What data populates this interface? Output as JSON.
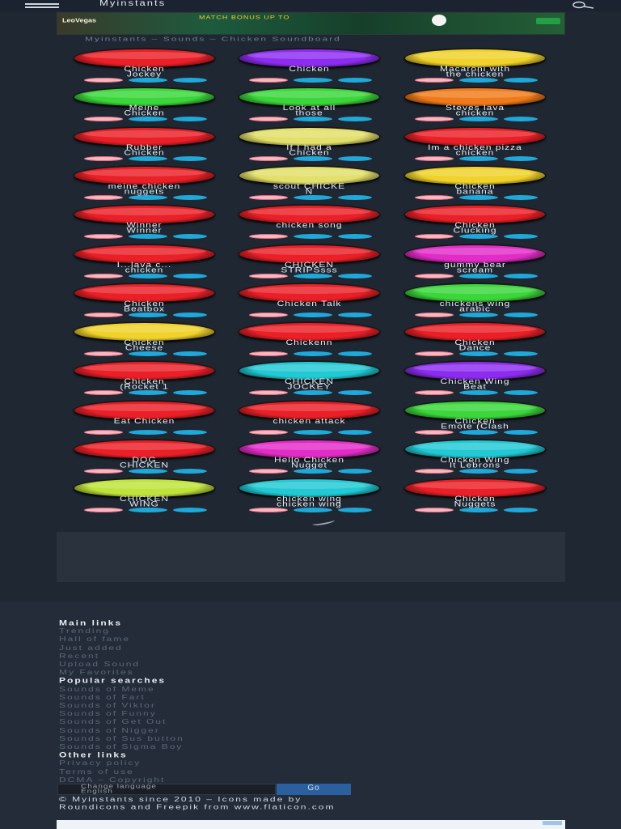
{
  "header": {
    "brand": "Myinstants",
    "menu_icon": "hamburger-icon",
    "search_icon": "search-icon"
  },
  "ad": {
    "logo": "LeoVegas",
    "text": "MATCH BONUS UP TO",
    "cta": ""
  },
  "breadcrumb": "Myinstants – Sounds – Chicken Soundboard",
  "colors": {
    "red": "#ea1f27",
    "purple": "#8d2cf0",
    "yellow": "#f0d22a",
    "green": "#3ad63a",
    "orange": "#f07a1a",
    "lightyellow": "#e2df6a",
    "cyan": "#21c9d4",
    "magenta": "#e22cc8",
    "lime": "#bfe33a",
    "favorite": "#ea6074",
    "share": "#1ea9da"
  },
  "sounds": [
    {
      "label": "Chicken\nJockey",
      "color": "red"
    },
    {
      "label": "Chicken",
      "color": "purple"
    },
    {
      "label": "Macaroni with\nthe chicken",
      "color": "yellow"
    },
    {
      "label": "Meine\nChicken",
      "color": "green"
    },
    {
      "label": "Look at all\nthose",
      "color": "green"
    },
    {
      "label": "Steves lava\nchicken",
      "color": "orange"
    },
    {
      "label": "Rubber\nChicken",
      "color": "red"
    },
    {
      "label": "If I had a\nChicken",
      "color": "lightyellow"
    },
    {
      "label": "Im a chicken pizza\nchicken",
      "color": "red"
    },
    {
      "label": "meine chicken\nnuggets",
      "color": "red"
    },
    {
      "label": "scout CHICKE\nN",
      "color": "lightyellow"
    },
    {
      "label": "Chicken\nbanana",
      "color": "yellow"
    },
    {
      "label": "Winner\nWinner",
      "color": "red"
    },
    {
      "label": "chicken song",
      "color": "red"
    },
    {
      "label": "Chicken\nClucking",
      "color": "red"
    },
    {
      "label": "I...lava c...\nchicken",
      "color": "red"
    },
    {
      "label": "CHICKEN\nSTRIPSsss",
      "color": "red"
    },
    {
      "label": "gummy bear\nscream",
      "color": "magenta"
    },
    {
      "label": "Chicken\nBeatbox",
      "color": "red"
    },
    {
      "label": "Chicken Talk",
      "color": "red"
    },
    {
      "label": "chickens wing\narabic",
      "color": "green"
    },
    {
      "label": "Chicken\nCheese",
      "color": "yellow"
    },
    {
      "label": "Chickenn",
      "color": "red"
    },
    {
      "label": "Chicken\nDance",
      "color": "red"
    },
    {
      "label": "Chicken\n(Rocket 1",
      "color": "red"
    },
    {
      "label": "CHICKEN\nJOCKEY",
      "color": "cyan"
    },
    {
      "label": "Chicken Wing\nBeat",
      "color": "purple"
    },
    {
      "label": "Eat Chicken",
      "color": "red"
    },
    {
      "label": "chicken attack",
      "color": "red"
    },
    {
      "label": "Chicken\nEmote (Clash",
      "color": "green"
    },
    {
      "label": "DOG\nCHICKEN",
      "color": "red"
    },
    {
      "label": "Hello Chicken\nNugget",
      "color": "magenta"
    },
    {
      "label": "Chicken Wing\nIt Lebrons",
      "color": "cyan"
    },
    {
      "label": "CHICKEN\nWING",
      "color": "lime"
    },
    {
      "label": "chicken wing\nchicken wing",
      "color": "cyan"
    },
    {
      "label": "Chicken\nNuggets",
      "color": "red"
    }
  ],
  "footer": {
    "main_links_title": "Main links",
    "main_links": [
      "Trending",
      "Hall of fame",
      "Just added",
      "Recent",
      "Upload Sound",
      "My Favorites"
    ],
    "popular_title": "Popular searches",
    "popular": [
      "Sounds of Meme",
      "Sounds of Fart",
      "Sounds of Viktor",
      "Sounds of Funny",
      "Sounds of Get Out",
      "Sounds of Nigger",
      "Sounds of Sus button",
      "Sounds of Sigma Boy"
    ],
    "other_title": "Other links",
    "other": [
      "Privacy policy",
      "Terms of use",
      "DCMA – Copyright"
    ],
    "language_label": "Change language\nEnglish",
    "go_label": "Go",
    "copyright": "© Myinstants since 2010 – Icons made by\nRoundicons and Freepik from www.flaticon.com"
  }
}
